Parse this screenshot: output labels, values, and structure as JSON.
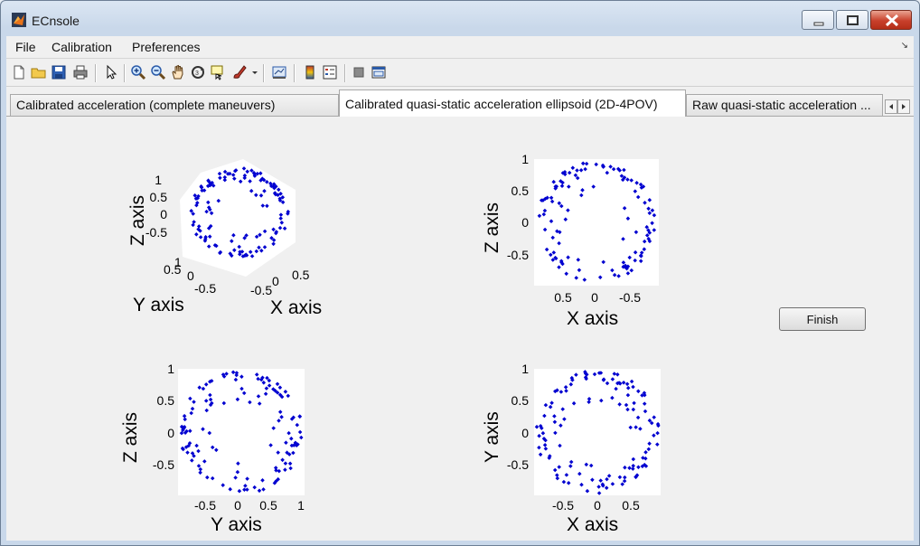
{
  "window": {
    "title": "ECnsole"
  },
  "menu": {
    "items": [
      "File",
      "Calibration",
      "Preferences"
    ],
    "corner_glyph": "↘"
  },
  "toolbar": {
    "icons": [
      "new-file-icon",
      "open-folder-icon",
      "save-icon",
      "print-icon",
      "pointer-icon",
      "zoom-in-icon",
      "zoom-out-icon",
      "pan-hand-icon",
      "rotate-3d-icon",
      "data-cursor-icon",
      "brush-icon",
      "dropdown-arrow-icon",
      "link-plot-icon",
      "colorbar-icon",
      "legend-icon",
      "hide-plot-tools-icon",
      "show-plot-tools-icon"
    ]
  },
  "tabs": [
    {
      "label": "Calibrated acceleration (complete maneuvers)",
      "active": false
    },
    {
      "label": "Calibrated quasi-static acceleration ellipsoid (2D-4POV)",
      "active": true
    },
    {
      "label": "Raw quasi-static acceleration ...",
      "active": false
    }
  ],
  "finish_button": {
    "label": "Finish"
  },
  "plots": {
    "p3d": {
      "xlabel": "X axis",
      "ylabel": "Y axis",
      "zlabel": "Z axis",
      "zticks": [
        "1",
        "0.5",
        "0",
        "-0.5"
      ],
      "yticks": [
        "1",
        "0.5",
        "0",
        "-0.5"
      ],
      "xticks": [
        "0.5",
        "0",
        "-0.5"
      ]
    },
    "xz": {
      "xlabel": "X axis",
      "ylabel": "Z axis",
      "xticks": [
        "0.5",
        "0",
        "-0.5"
      ],
      "yticks": [
        "1",
        "0.5",
        "0",
        "-0.5"
      ]
    },
    "yz": {
      "xlabel": "Y axis",
      "ylabel": "Z axis",
      "xticks": [
        "-0.5",
        "0",
        "0.5",
        "1"
      ],
      "yticks": [
        "1",
        "0.5",
        "0",
        "-0.5"
      ]
    },
    "xy": {
      "xlabel": "X axis",
      "ylabel": "Y axis",
      "xticks": [
        "-0.5",
        "0",
        "0.5"
      ],
      "yticks": [
        "1",
        "0.5",
        "0",
        "-0.5"
      ]
    }
  },
  "colors": {
    "marker": "#0000d0",
    "accent": "#c8402b"
  }
}
